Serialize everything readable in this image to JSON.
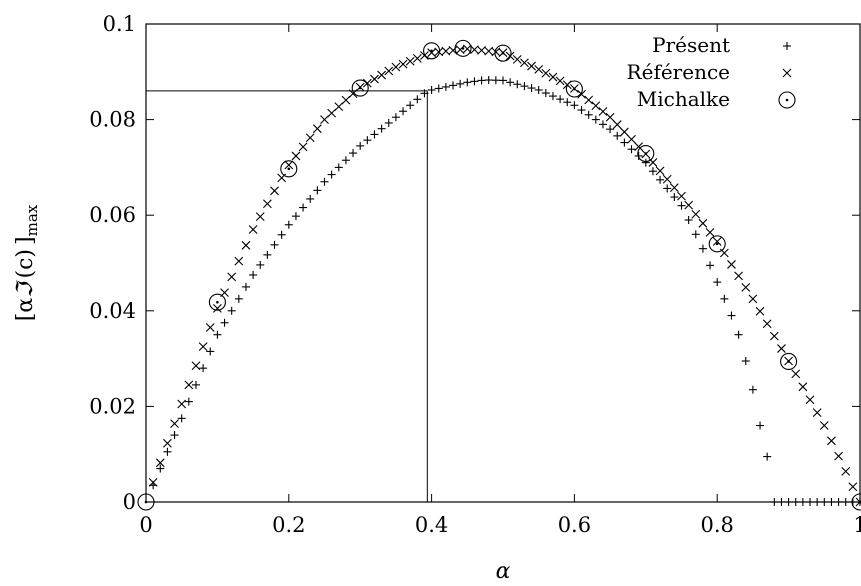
{
  "chart_data": {
    "type": "scatter",
    "xlabel": "α",
    "ylabel": "[αℑ(c)]max",
    "ylabel_main": "[α",
    "ylabel_im": "ℑ",
    "ylabel_mid": "(c)",
    "ylabel_close": "]",
    "ylabel_sub": "max",
    "xlim": [
      0,
      1
    ],
    "ylim": [
      0,
      0.1
    ],
    "x_ticks": [
      "0",
      "0.2",
      "0.4",
      "0.6",
      "0.8",
      "1"
    ],
    "y_ticks": [
      "0",
      "0.02",
      "0.04",
      "0.06",
      "0.08",
      "0.1"
    ],
    "grid": false,
    "legend_position": "top-right",
    "guide_lines": {
      "x": 0.394,
      "y": 0.086
    },
    "series": [
      {
        "name": "Présent",
        "marker": "plus",
        "sampling": {
          "x_start": 0.01,
          "x_end": 0.87,
          "step": 0.01
        },
        "points": [
          [
            0.0,
            0.0
          ],
          [
            0.05,
            0.0175
          ],
          [
            0.1,
            0.035
          ],
          [
            0.15,
            0.0475
          ],
          [
            0.2,
            0.058
          ],
          [
            0.25,
            0.067
          ],
          [
            0.3,
            0.0745
          ],
          [
            0.35,
            0.0805
          ],
          [
            0.394,
            0.086
          ],
          [
            0.45,
            0.0878
          ],
          [
            0.475,
            0.0883
          ],
          [
            0.5,
            0.0882
          ],
          [
            0.55,
            0.0862
          ],
          [
            0.6,
            0.083
          ],
          [
            0.65,
            0.078
          ],
          [
            0.7,
            0.071
          ],
          [
            0.75,
            0.062
          ],
          [
            0.78,
            0.053
          ],
          [
            0.8,
            0.046
          ],
          [
            0.82,
            0.039
          ],
          [
            0.83,
            0.035
          ],
          [
            0.84,
            0.0295
          ],
          [
            0.85,
            0.0235
          ],
          [
            0.86,
            0.016
          ],
          [
            0.87,
            0.0095
          ]
        ],
        "zero_tail": {
          "x_start": 0.88,
          "x_end": 1.0,
          "step": 0.01
        }
      },
      {
        "name": "Référence",
        "marker": "cross",
        "sampling": {
          "x_start": 0.01,
          "x_end": 1.0,
          "step": 0.01
        },
        "points": [
          [
            0.0,
            0.0
          ],
          [
            0.05,
            0.0205
          ],
          [
            0.1,
            0.0405
          ],
          [
            0.15,
            0.057
          ],
          [
            0.2,
            0.0705
          ],
          [
            0.25,
            0.08
          ],
          [
            0.3,
            0.0868
          ],
          [
            0.35,
            0.091
          ],
          [
            0.4,
            0.094
          ],
          [
            0.45,
            0.0948
          ],
          [
            0.5,
            0.094
          ],
          [
            0.55,
            0.0905
          ],
          [
            0.6,
            0.0865
          ],
          [
            0.65,
            0.0805
          ],
          [
            0.7,
            0.0728
          ],
          [
            0.75,
            0.064
          ],
          [
            0.8,
            0.0545
          ],
          [
            0.85,
            0.0425
          ],
          [
            0.9,
            0.0295
          ],
          [
            0.95,
            0.016
          ],
          [
            1.0,
            0.0
          ]
        ]
      },
      {
        "name": "Michalke",
        "marker": "circle",
        "points": [
          [
            0.0,
            0.0
          ],
          [
            0.1,
            0.0418
          ],
          [
            0.2,
            0.0697
          ],
          [
            0.3,
            0.0866
          ],
          [
            0.4,
            0.0944
          ],
          [
            0.444,
            0.0949
          ],
          [
            0.5,
            0.0939
          ],
          [
            0.6,
            0.0864
          ],
          [
            0.7,
            0.0729
          ],
          [
            0.8,
            0.054
          ],
          [
            0.9,
            0.0294
          ],
          [
            1.0,
            0.0
          ]
        ]
      }
    ]
  }
}
